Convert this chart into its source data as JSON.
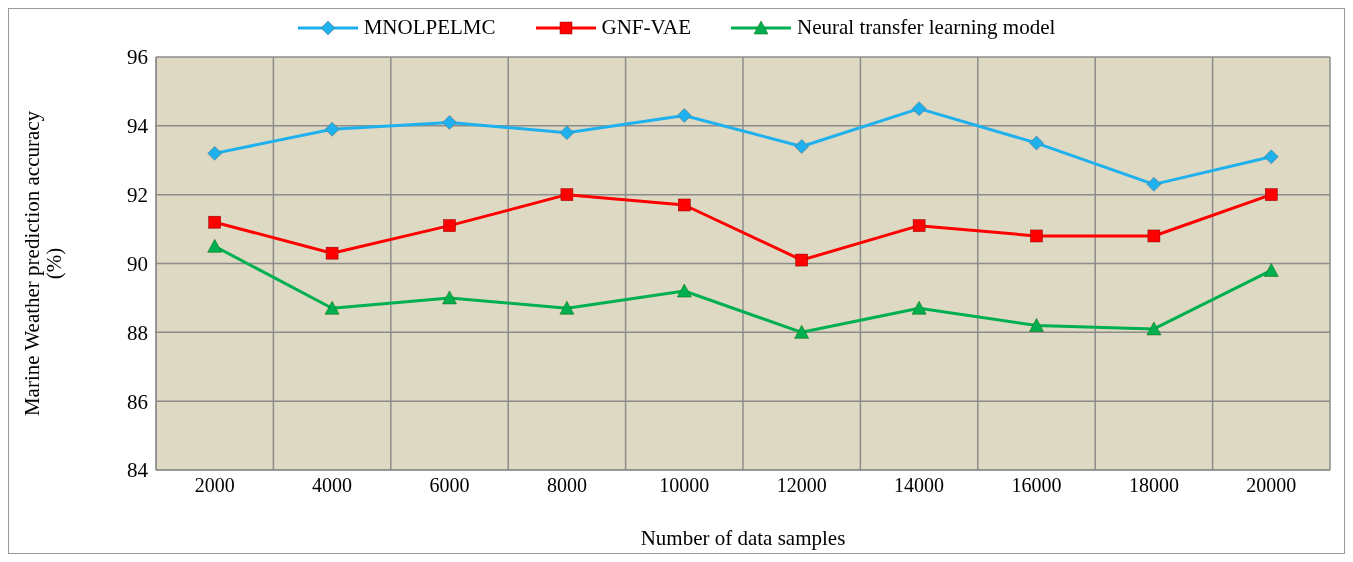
{
  "chart_data": {
    "type": "line",
    "xlabel": "Number of data samples",
    "ylabel": "Marine Weather prediction accuracy\n(%)",
    "categories": [
      "2000",
      "4000",
      "6000",
      "8000",
      "10000",
      "12000",
      "14000",
      "16000",
      "18000",
      "20000"
    ],
    "series": [
      {
        "name": "MNOLPELMC",
        "color": "#1fb0ee",
        "marker": "diamond",
        "values": [
          93.2,
          93.9,
          94.1,
          93.8,
          94.3,
          93.4,
          94.5,
          93.5,
          92.3,
          93.1
        ]
      },
      {
        "name": "GNF-VAE",
        "color": "#ff0000",
        "marker": "square",
        "values": [
          91.2,
          90.3,
          91.1,
          92.0,
          91.7,
          90.1,
          91.1,
          90.8,
          90.8,
          92.0
        ]
      },
      {
        "name": "Neural transfer learning model",
        "color": "#00b050",
        "marker": "triangle",
        "values": [
          90.5,
          88.7,
          89.0,
          88.7,
          89.2,
          88.0,
          88.7,
          88.2,
          88.1,
          89.8
        ]
      }
    ],
    "ylim": [
      84,
      96
    ],
    "yticks": [
      84,
      86,
      88,
      90,
      92,
      94,
      96
    ],
    "grid": true,
    "legend": "top",
    "line_style": "solid"
  }
}
